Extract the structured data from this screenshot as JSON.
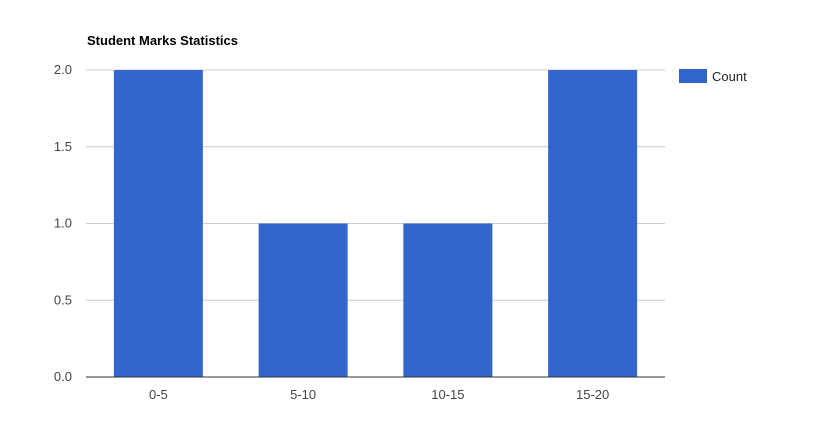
{
  "chart_data": {
    "type": "bar",
    "title": "Student Marks Statistics",
    "categories": [
      "0-5",
      "5-10",
      "10-15",
      "15-20"
    ],
    "series": [
      {
        "name": "Count",
        "values": [
          2,
          1,
          1,
          2
        ],
        "color": "#3366cc"
      }
    ],
    "ylim": [
      0,
      2
    ],
    "yticks": [
      0,
      0.5,
      1,
      1.5,
      2
    ],
    "ytick_labels": [
      "0.0",
      "0.5",
      "1.0",
      "1.5",
      "2.0"
    ],
    "xlabel": "",
    "ylabel": "",
    "grid": true,
    "legend": "right",
    "colors": {
      "gridline": "#cccccc",
      "baseline": "#333333"
    }
  }
}
